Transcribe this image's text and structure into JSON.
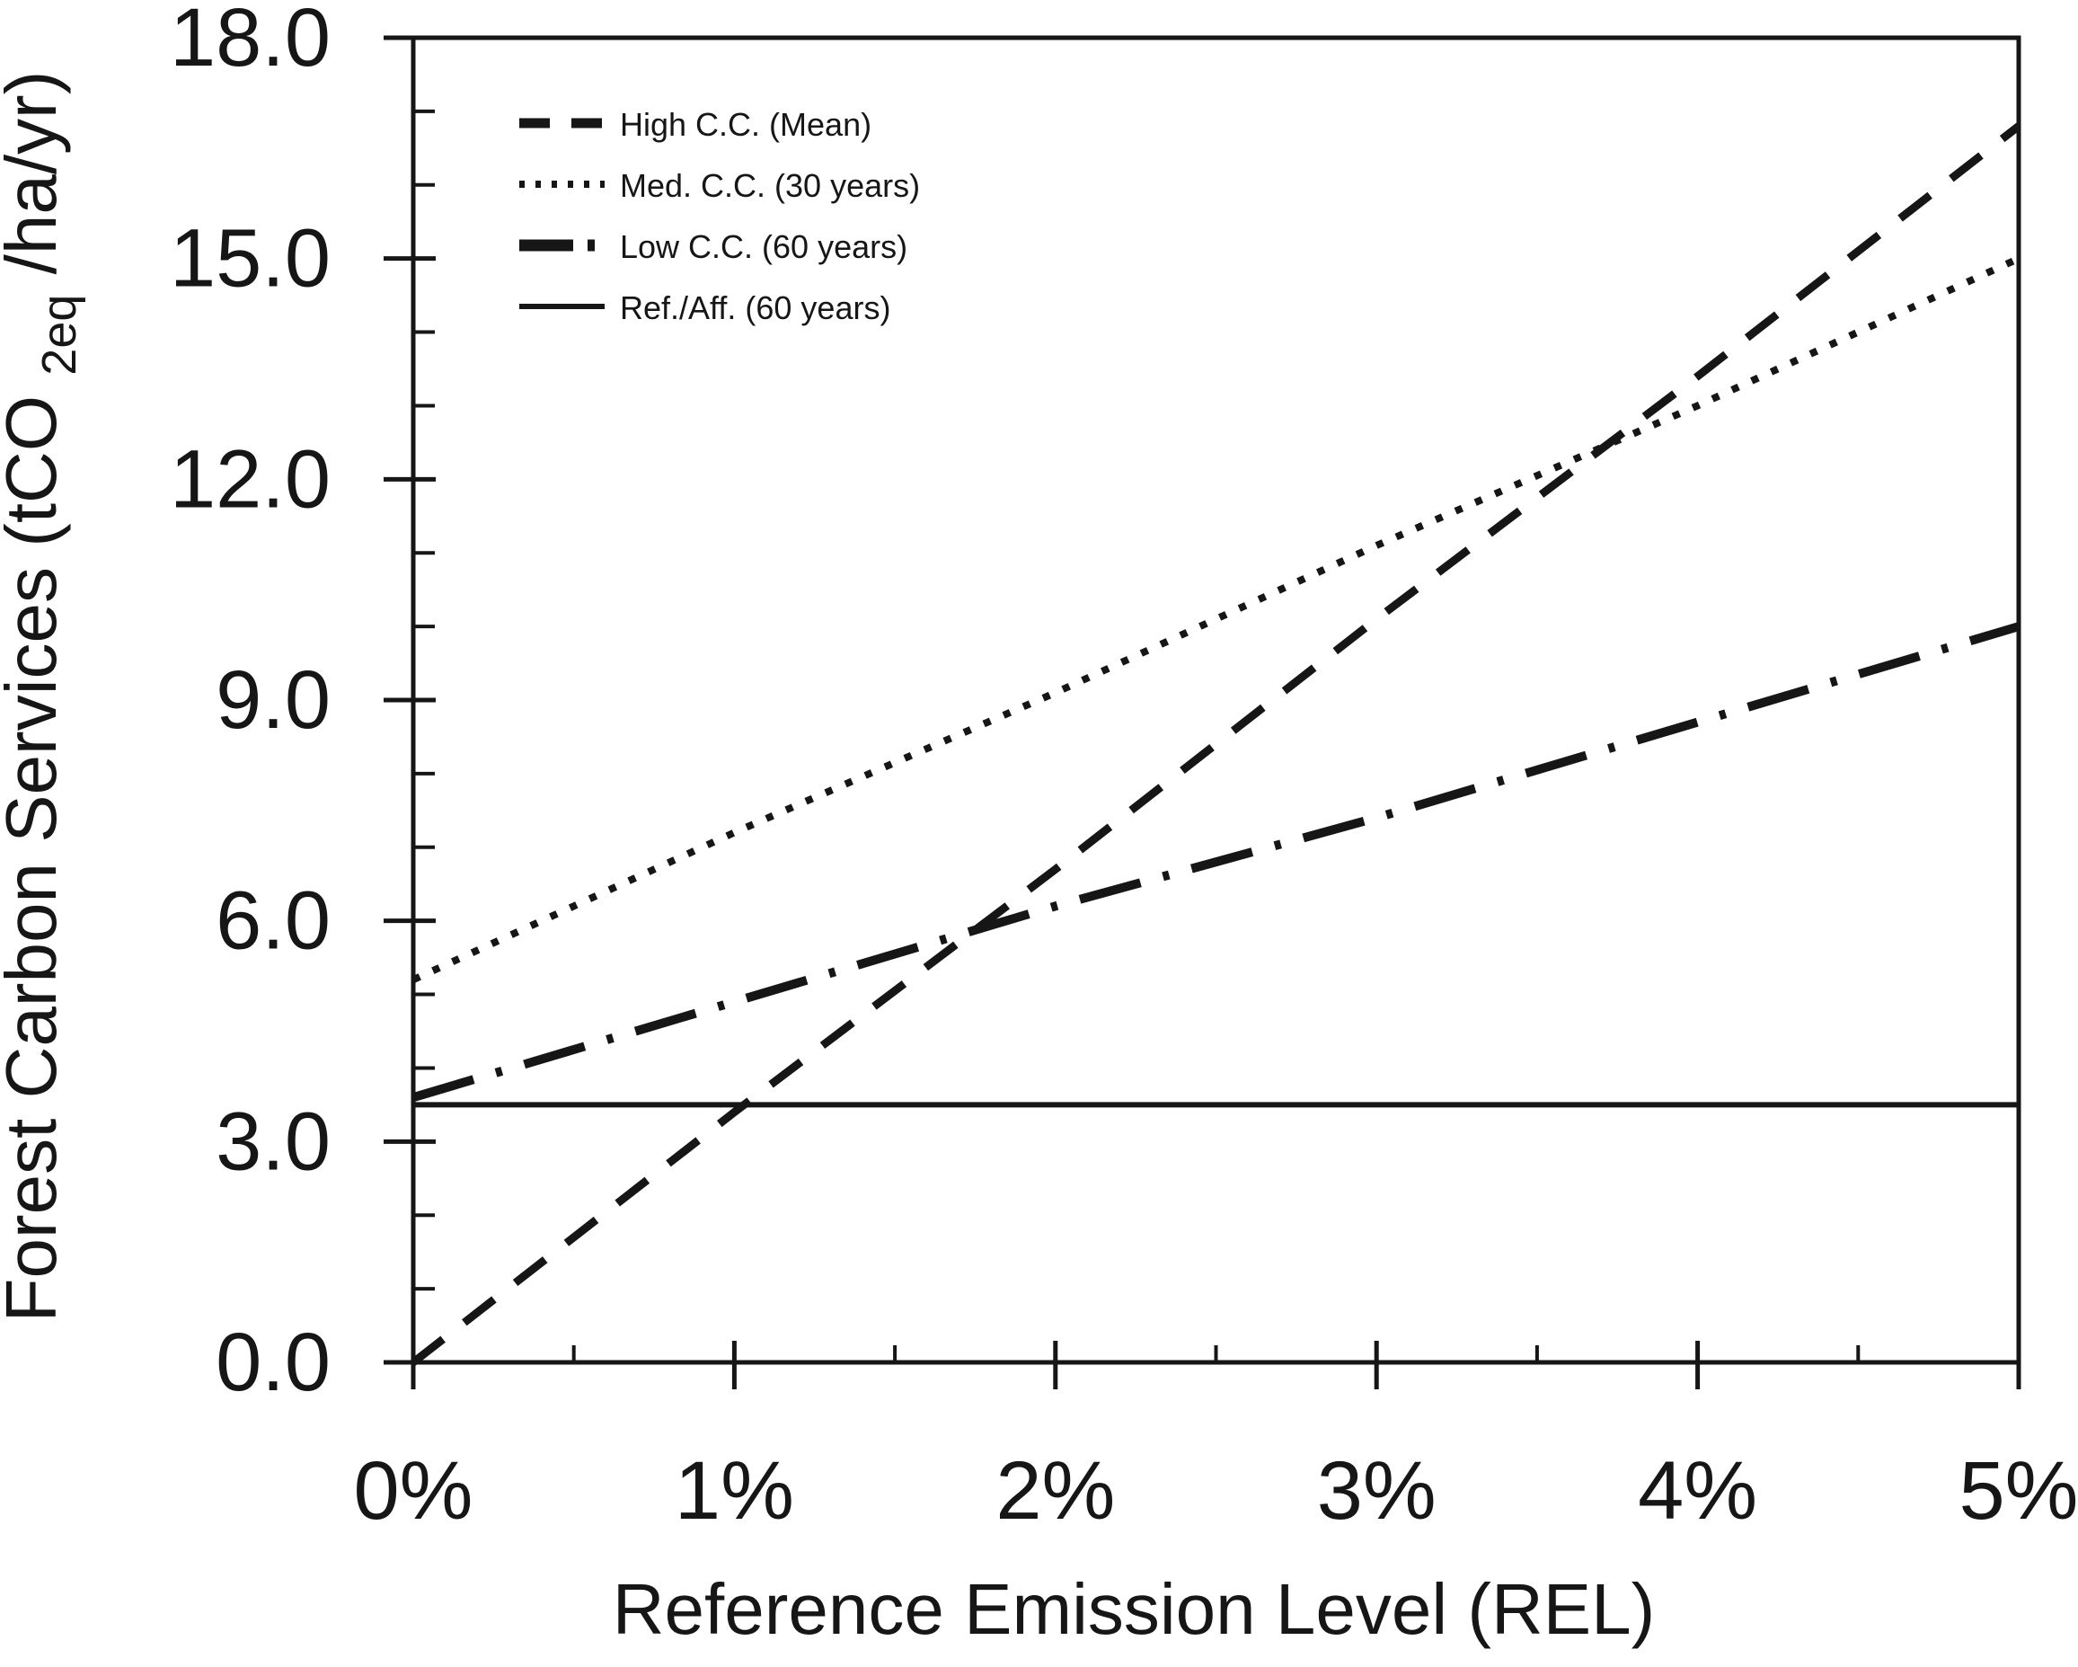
{
  "figure": {
    "background": "#ffffff",
    "ink_color": "#161616"
  },
  "chart_data": {
    "type": "line",
    "title": "",
    "xlabel": "Reference Emission Level (REL)",
    "ylabel": "Forest Carbon Services (tCO2eq/ha/yr)",
    "ylabel_parts": {
      "prefix": "Forest Carbon Services (tCO",
      "sub": "2eq",
      "suffix": "/ha/yr)"
    },
    "xlim": [
      0,
      5
    ],
    "ylim": [
      0,
      18
    ],
    "x": [
      0,
      1,
      2,
      3,
      4,
      5
    ],
    "x_tick_labels": [
      "0%",
      "1%",
      "2%",
      "3%",
      "4%",
      "5%"
    ],
    "x_minor_step": 0.5,
    "y_major_ticks": [
      0,
      3,
      6,
      9,
      12,
      15,
      18
    ],
    "y_tick_labels": [
      "0.0",
      "3.0",
      "6.0",
      "9.0",
      "12.0",
      "15.0",
      "18.0"
    ],
    "y_minor_step": 1,
    "grid": false,
    "legend": {
      "position": "inside-top-left"
    },
    "series": [
      {
        "name": "High C.C. (Mean)",
        "style": "dashed",
        "values": [
          0.0,
          3.4,
          6.7,
          10.1,
          13.4,
          16.8
        ]
      },
      {
        "name": "Med. C.C. (30 years)",
        "style": "dotted",
        "values": [
          5.2,
          7.2,
          9.1,
          11.1,
          13.0,
          15.0
        ]
      },
      {
        "name": "Low C.C. (60 years)",
        "style": "dashdot",
        "values": [
          3.6,
          4.9,
          6.2,
          7.4,
          8.7,
          10.0
        ]
      },
      {
        "name": "Ref./Aff. (60 years)",
        "style": "solid",
        "values": [
          3.5,
          3.5,
          3.5,
          3.5,
          3.5,
          3.5
        ]
      }
    ]
  }
}
